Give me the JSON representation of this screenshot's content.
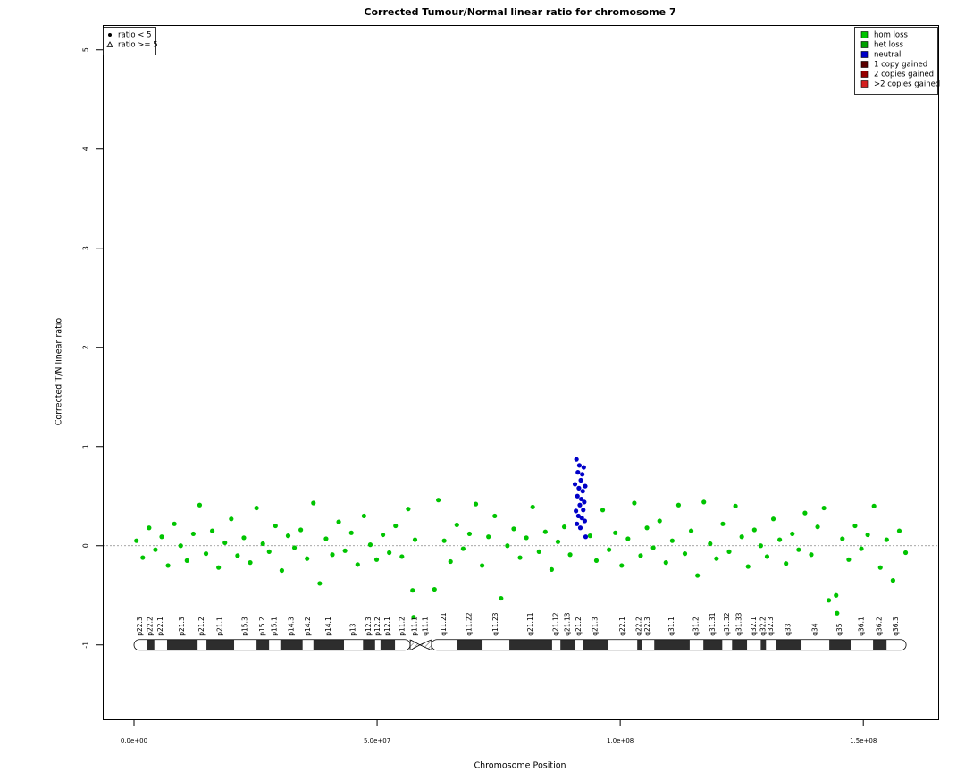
{
  "chart_data": {
    "type": "scatter",
    "title": "Corrected Tumour/Normal linear ratio for chromosome  7",
    "x_label": "Chromosome Position",
    "y_label": "Corrected T/N linear ratio",
    "xlim": [
      -6430000.0,
      165400000.0
    ],
    "ylim": [
      -1.75,
      5.25
    ],
    "xticks": [
      {
        "value": 0,
        "label": "0.0e+00"
      },
      {
        "value": 50000000.0,
        "label": "5.0e+07"
      },
      {
        "value": 100000000.0,
        "label": "1.0e+08"
      },
      {
        "value": 150000000.0,
        "label": "1.5e+08"
      }
    ],
    "yticks": [
      -1,
      0,
      1,
      2,
      3,
      4,
      5
    ],
    "hline": 0,
    "legend": "top-right",
    "shape_legend": {
      "corner": "top-left",
      "items": [
        "ratio < 5",
        "ratio >= 5"
      ]
    },
    "series": [
      {
        "name": "hom loss",
        "color": "#00c400",
        "x": [
          500000.0,
          1800000.0,
          3100000.0,
          4400000.0,
          5700000.0,
          7000000.0,
          8300000.0,
          9600000.0,
          10900000.0,
          12200000.0,
          13500000.0,
          14800000.0,
          16100000.0,
          17400000.0,
          18700000.0,
          20000000.0,
          21300000.0,
          22600000.0,
          23900000.0,
          25200000.0,
          26500000.0,
          27800000.0,
          29100000.0,
          30400000.0,
          31700000.0,
          33000000.0,
          34300000.0,
          35600000.0,
          36900000.0,
          38200000.0,
          39500000.0,
          40800000.0,
          42100000.0,
          43400000.0,
          44700000.0,
          46000000.0,
          47300000.0,
          48600000.0,
          49900000.0,
          51200000.0,
          52500000.0,
          53800000.0,
          55100000.0,
          56400000.0,
          57300000.0,
          57500000.0,
          57800000.0,
          61800000.0,
          62600000.0,
          63800000.0,
          65100000.0,
          66400000.0,
          67700000.0,
          69000000.0,
          70300000.0,
          71600000.0,
          72900000.0,
          74200000.0,
          75500000.0,
          76800000.0,
          78100000.0,
          79400000.0,
          80700000.0,
          82000000.0,
          83300000.0,
          84600000.0,
          85900000.0,
          87200000.0,
          88500000.0,
          89700000.0,
          93800000.0,
          95100000.0,
          96400000.0,
          97700000.0,
          99000000.0,
          100300000.0,
          101600000.0,
          102900000.0,
          104200000.0,
          105500000.0,
          106800000.0,
          108100000.0,
          109400000.0,
          110700000.0,
          112000000.0,
          113300000.0,
          114600000.0,
          115900000.0,
          117200000.0,
          118500000.0,
          119800000.0,
          121100000.0,
          122400000.0,
          123700000.0,
          125000000.0,
          126300000.0,
          127600000.0,
          128900000.0,
          130200000.0,
          131500000.0,
          132800000.0,
          134100000.0,
          135400000.0,
          136700000.0,
          138000000.0,
          139300000.0,
          140600000.0,
          141900000.0,
          142900000.0,
          144400000.0,
          144600000.0,
          145700000.0,
          147000000.0,
          148300000.0,
          149600000.0,
          150900000.0,
          152200000.0,
          153500000.0,
          154800000.0,
          156100000.0,
          157400000.0,
          158700000.0
        ],
        "values": [
          0.05,
          -0.12,
          0.18,
          -0.04,
          0.09,
          -0.2,
          0.22,
          0.0,
          -0.15,
          0.12,
          0.41,
          -0.08,
          0.15,
          -0.22,
          0.03,
          0.27,
          -0.1,
          0.08,
          -0.17,
          0.38,
          0.02,
          -0.06,
          0.2,
          -0.25,
          0.1,
          -0.02,
          0.16,
          -0.13,
          0.43,
          -0.38,
          0.07,
          -0.09,
          0.24,
          -0.05,
          0.13,
          -0.19,
          0.3,
          0.01,
          -0.14,
          0.11,
          -0.07,
          0.2,
          -0.11,
          0.37,
          -0.45,
          -0.72,
          0.06,
          -0.44,
          0.46,
          0.05,
          -0.16,
          0.21,
          -0.03,
          0.12,
          0.42,
          -0.2,
          0.09,
          0.3,
          -0.53,
          0.0,
          0.17,
          -0.12,
          0.08,
          0.39,
          -0.06,
          0.14,
          -0.24,
          0.04,
          0.19,
          -0.09,
          0.1,
          -0.15,
          0.36,
          -0.04,
          0.13,
          -0.2,
          0.07,
          0.43,
          -0.1,
          0.18,
          -0.02,
          0.25,
          -0.17,
          0.05,
          0.41,
          -0.08,
          0.15,
          -0.3,
          0.44,
          0.02,
          -0.13,
          0.22,
          -0.06,
          0.4,
          0.09,
          -0.21,
          0.16,
          0.0,
          -0.11,
          0.27,
          0.06,
          -0.18,
          0.12,
          -0.04,
          0.33,
          -0.09,
          0.19,
          0.38,
          -0.55,
          -0.5,
          -0.68,
          0.07,
          -0.14,
          0.2,
          -0.03,
          0.11,
          0.4,
          -0.22,
          0.06,
          -0.35,
          0.15,
          -0.07
        ]
      },
      {
        "name": "het loss",
        "color": "#00a000",
        "x": [],
        "values": []
      },
      {
        "name": "neutral",
        "color": "#0000c8",
        "x": [
          90700000.0,
          90900000.0,
          91000000.0,
          91100000.0,
          91200000.0,
          91300000.0,
          91400000.0,
          91500000.0,
          91600000.0,
          91700000.0,
          91800000.0,
          91900000.0,
          92000000.0,
          92100000.0,
          92200000.0,
          92300000.0,
          92400000.0,
          92500000.0,
          92600000.0,
          92700000.0,
          92800000.0,
          92900000.0
        ],
        "values": [
          0.62,
          0.35,
          0.87,
          0.22,
          0.5,
          0.74,
          0.3,
          0.58,
          0.81,
          0.41,
          0.18,
          0.66,
          0.47,
          0.28,
          0.72,
          0.55,
          0.36,
          0.79,
          0.44,
          0.25,
          0.6,
          0.09
        ]
      },
      {
        "name": "1 copy gained",
        "color": "#5a0000",
        "x": [],
        "values": []
      },
      {
        "name": "2 copies gained",
        "color": "#960000",
        "x": [],
        "values": []
      },
      {
        "name": ">2 copies gained",
        "color": "#d42020",
        "x": [],
        "values": []
      }
    ],
    "ideogram": {
      "y": -1,
      "bands": [
        {
          "name": "p22.3",
          "start": 0,
          "end": 2600000.0,
          "stain": "gneg"
        },
        {
          "name": "p22.2",
          "start": 2600000.0,
          "end": 4200000.0,
          "stain": "gpos"
        },
        {
          "name": "p22.1",
          "start": 4200000.0,
          "end": 6800000.0,
          "stain": "gneg"
        },
        {
          "name": "p21.3",
          "start": 6800000.0,
          "end": 13100000.0,
          "stain": "gpos"
        },
        {
          "name": "p21.2",
          "start": 13100000.0,
          "end": 14900000.0,
          "stain": "gneg"
        },
        {
          "name": "p21.1",
          "start": 14900000.0,
          "end": 20600000.0,
          "stain": "gpos"
        },
        {
          "name": "p15.3",
          "start": 20600000.0,
          "end": 25200000.0,
          "stain": "gneg"
        },
        {
          "name": "p15.2",
          "start": 25200000.0,
          "end": 27800000.0,
          "stain": "gpos"
        },
        {
          "name": "p15.1",
          "start": 27800000.0,
          "end": 30100000.0,
          "stain": "gneg"
        },
        {
          "name": "p14.3",
          "start": 30100000.0,
          "end": 34700000.0,
          "stain": "gpos"
        },
        {
          "name": "p14.2",
          "start": 34700000.0,
          "end": 36900000.0,
          "stain": "gneg"
        },
        {
          "name": "p14.1",
          "start": 36900000.0,
          "end": 43200000.0,
          "stain": "gpos"
        },
        {
          "name": "p13",
          "start": 43200000.0,
          "end": 47100000.0,
          "stain": "gneg"
        },
        {
          "name": "p12.3",
          "start": 47100000.0,
          "end": 49600000.0,
          "stain": "gpos"
        },
        {
          "name": "p12.2",
          "start": 49600000.0,
          "end": 50700000.0,
          "stain": "gneg"
        },
        {
          "name": "p12.1",
          "start": 50700000.0,
          "end": 53700000.0,
          "stain": "gpos"
        },
        {
          "name": "p11.2",
          "start": 53700000.0,
          "end": 56800000.0,
          "stain": "gneg"
        },
        {
          "name": "p11.1",
          "start": 56800000.0,
          "end": 58800000.0,
          "stain": "acen"
        },
        {
          "name": "q11.1",
          "start": 58800000.0,
          "end": 61200000.0,
          "stain": "acen"
        },
        {
          "name": "q11.21",
          "start": 61200000.0,
          "end": 66400000.0,
          "stain": "gneg"
        },
        {
          "name": "q11.22",
          "start": 66400000.0,
          "end": 71700000.0,
          "stain": "gpos"
        },
        {
          "name": "q11.23",
          "start": 71700000.0,
          "end": 77200000.0,
          "stain": "gneg"
        },
        {
          "name": "q21.11",
          "start": 77200000.0,
          "end": 86000000.0,
          "stain": "gpos"
        },
        {
          "name": "q21.12",
          "start": 86000000.0,
          "end": 87700000.0,
          "stain": "gneg"
        },
        {
          "name": "q21.13",
          "start": 87700000.0,
          "end": 90800000.0,
          "stain": "gpos"
        },
        {
          "name": "q21.2",
          "start": 90800000.0,
          "end": 92300000.0,
          "stain": "gneg"
        },
        {
          "name": "q21.3",
          "start": 92300000.0,
          "end": 97600000.0,
          "stain": "gpos"
        },
        {
          "name": "q22.1",
          "start": 97600000.0,
          "end": 103500000.0,
          "stain": "gneg"
        },
        {
          "name": "q22.2",
          "start": 103500000.0,
          "end": 104400000.0,
          "stain": "gpos"
        },
        {
          "name": "q22.3",
          "start": 104400000.0,
          "end": 107000000.0,
          "stain": "gneg"
        },
        {
          "name": "q31.1",
          "start": 107000000.0,
          "end": 114300000.0,
          "stain": "gpos"
        },
        {
          "name": "q31.2",
          "start": 114300000.0,
          "end": 117100000.0,
          "stain": "gneg"
        },
        {
          "name": "q31.31",
          "start": 117100000.0,
          "end": 121000000.0,
          "stain": "gpos"
        },
        {
          "name": "q31.32",
          "start": 121000000.0,
          "end": 123000000.0,
          "stain": "gneg"
        },
        {
          "name": "q31.33",
          "start": 123000000.0,
          "end": 126100000.0,
          "stain": "gpos"
        },
        {
          "name": "q32.1",
          "start": 126100000.0,
          "end": 128900000.0,
          "stain": "gneg"
        },
        {
          "name": "q32.2",
          "start": 128900000.0,
          "end": 130000000.0,
          "stain": "gpos"
        },
        {
          "name": "q32.3",
          "start": 130000000.0,
          "end": 132000000.0,
          "stain": "gneg"
        },
        {
          "name": "q33",
          "start": 132000000.0,
          "end": 137300000.0,
          "stain": "gpos"
        },
        {
          "name": "q34",
          "start": 137300000.0,
          "end": 143000000.0,
          "stain": "gneg"
        },
        {
          "name": "q35",
          "start": 143000000.0,
          "end": 147400000.0,
          "stain": "gpos"
        },
        {
          "name": "q36.1",
          "start": 147400000.0,
          "end": 152000000.0,
          "stain": "gneg"
        },
        {
          "name": "q36.2",
          "start": 152000000.0,
          "end": 154800000.0,
          "stain": "gpos"
        },
        {
          "name": "q36.3",
          "start": 154800000.0,
          "end": 158800000.0,
          "stain": "gneg"
        }
      ]
    }
  }
}
